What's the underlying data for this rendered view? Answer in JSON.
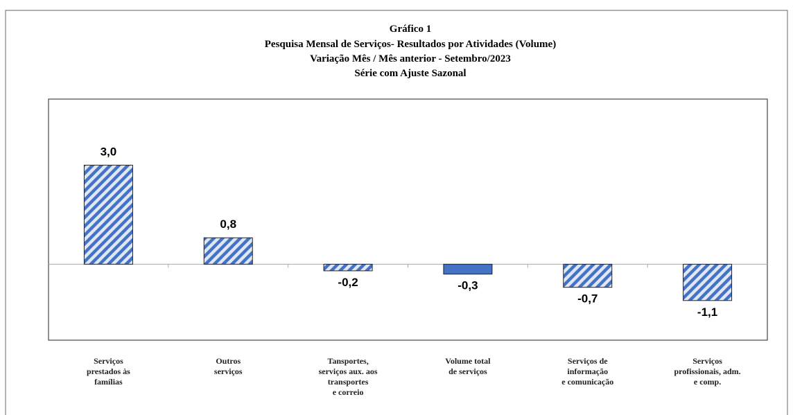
{
  "chart_data": {
    "type": "bar",
    "title": [
      "Gráfico 1",
      "Pesquisa Mensal de Serviços- Resultados por Atividades (Volume)",
      "Variação Mês / Mês anterior - Setembro/2023",
      "Série com Ajuste Sazonal"
    ],
    "categories": [
      "Serviços\nprestados às\nfamílias",
      "Outros\nserviços",
      "Tansportes,\nserviços aux. aos\ntransportes\ne correio",
      "Volume total\nde serviços",
      "Serviços de\ninformação\ne comunicação",
      "Serviços\nprofissionais,  adm.\ne comp."
    ],
    "values": [
      3.0,
      0.8,
      -0.2,
      -0.3,
      -0.7,
      -1.1
    ],
    "value_labels": [
      "3,0",
      "0,8",
      "-0,2",
      "-0,3",
      "-0,7",
      "-1,1"
    ],
    "colors": [
      "#4472c4",
      "#4472c4",
      "#4472c4",
      "#4472c4",
      "#4472c4",
      "#4472c4"
    ],
    "hatched": [
      true,
      true,
      true,
      false,
      true,
      true
    ],
    "ylim": [
      -2.3,
      5.0
    ]
  }
}
